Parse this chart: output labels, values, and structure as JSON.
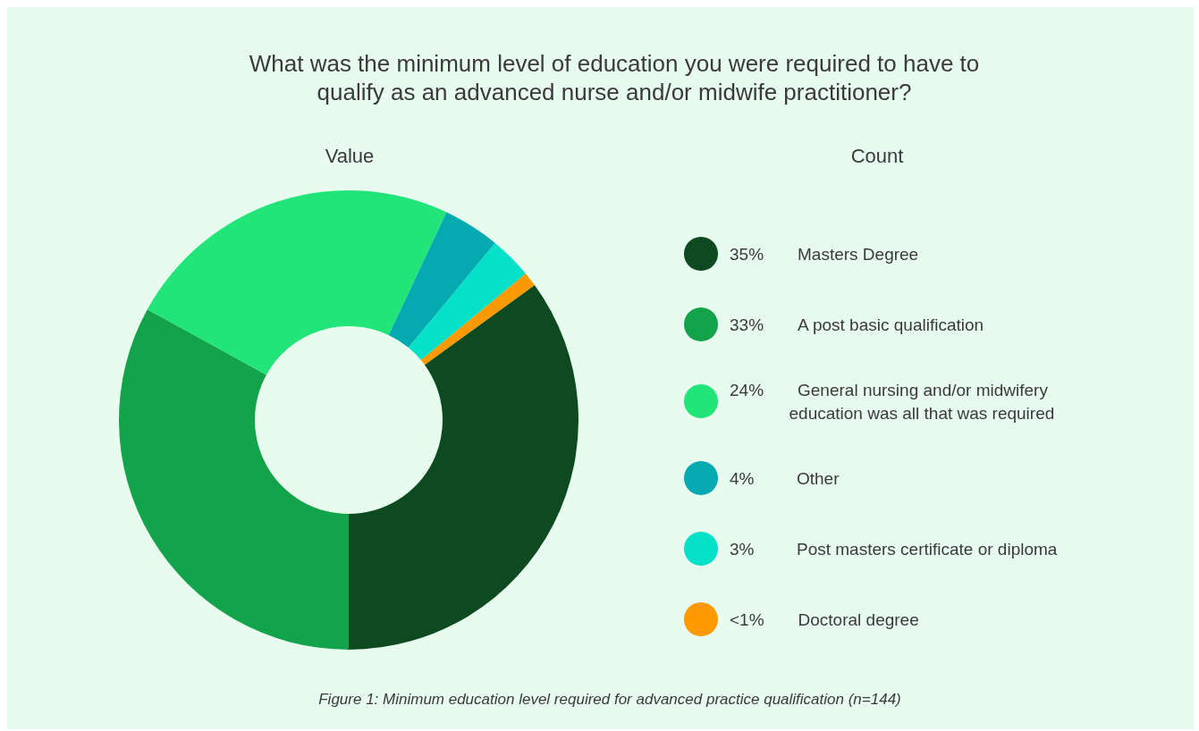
{
  "chart_data": {
    "type": "donut",
    "title": "What was the minimum level of education you were required to have to qualify as an advanced nurse and/or midwife practitioner?",
    "categories": [
      "Masters Degree",
      "A post basic qualification",
      "General nursing and/or midwifery education was all that was required",
      "Other",
      "Post masters certificate or diploma",
      "Doctoral degree"
    ],
    "values": [
      35,
      33,
      24,
      4,
      3,
      1
    ],
    "value_labels": [
      "35%",
      "33%",
      "24%",
      "4%",
      "3%",
      "<1%"
    ],
    "colors": [
      "#0d4a20",
      "#13a34b",
      "#22e57a",
      "#05aab0",
      "#05e0c8",
      "#ff9900"
    ],
    "legend": "right",
    "annotations": [
      "Value",
      "Count",
      "Figure 1: Minimum education level required for advanced practice qualification (n=144)"
    ]
  }
}
